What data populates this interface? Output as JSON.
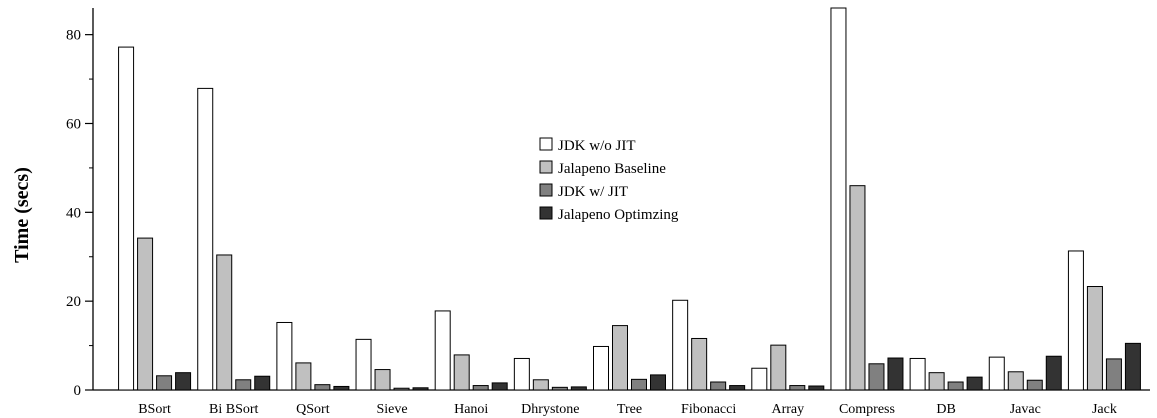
{
  "chart_data": {
    "type": "bar",
    "title": "",
    "xlabel": "",
    "ylabel": "Time (secs)",
    "ylim": [
      0,
      86
    ],
    "yticks": [
      0,
      20,
      40,
      60,
      80
    ],
    "grid": false,
    "legend_placement": "top-center",
    "categories": [
      "BSort",
      "Bi BSort",
      "QSort",
      "Sieve",
      "Hanoi",
      "Dhrystone",
      "Tree",
      "Fibonacci",
      "Array",
      "Compress",
      "DB",
      "Javac",
      "Jack"
    ],
    "series": [
      {
        "name": "JDK w/o JIT",
        "color": "#ffffff",
        "values": [
          77.2,
          67.9,
          15.2,
          11.4,
          17.8,
          7.1,
          9.8,
          20.2,
          4.9,
          86.0,
          7.1,
          7.4,
          31.3
        ]
      },
      {
        "name": "Jalapeno Baseline",
        "color": "#c0c0c0",
        "values": [
          34.2,
          30.4,
          6.1,
          4.6,
          7.9,
          2.3,
          14.5,
          11.6,
          10.1,
          46.0,
          3.9,
          4.1,
          23.3
        ]
      },
      {
        "name": "JDK w/ JIT",
        "color": "#808080",
        "values": [
          3.2,
          2.3,
          1.2,
          0.4,
          1.0,
          0.6,
          2.4,
          1.8,
          1.0,
          5.9,
          1.8,
          2.2,
          7.0
        ]
      },
      {
        "name": "Jalapeno Optimzing",
        "color": "#333333",
        "values": [
          3.9,
          3.1,
          0.8,
          0.5,
          1.6,
          0.7,
          3.4,
          1.0,
          0.9,
          7.2,
          2.9,
          7.6,
          10.5
        ]
      }
    ]
  }
}
